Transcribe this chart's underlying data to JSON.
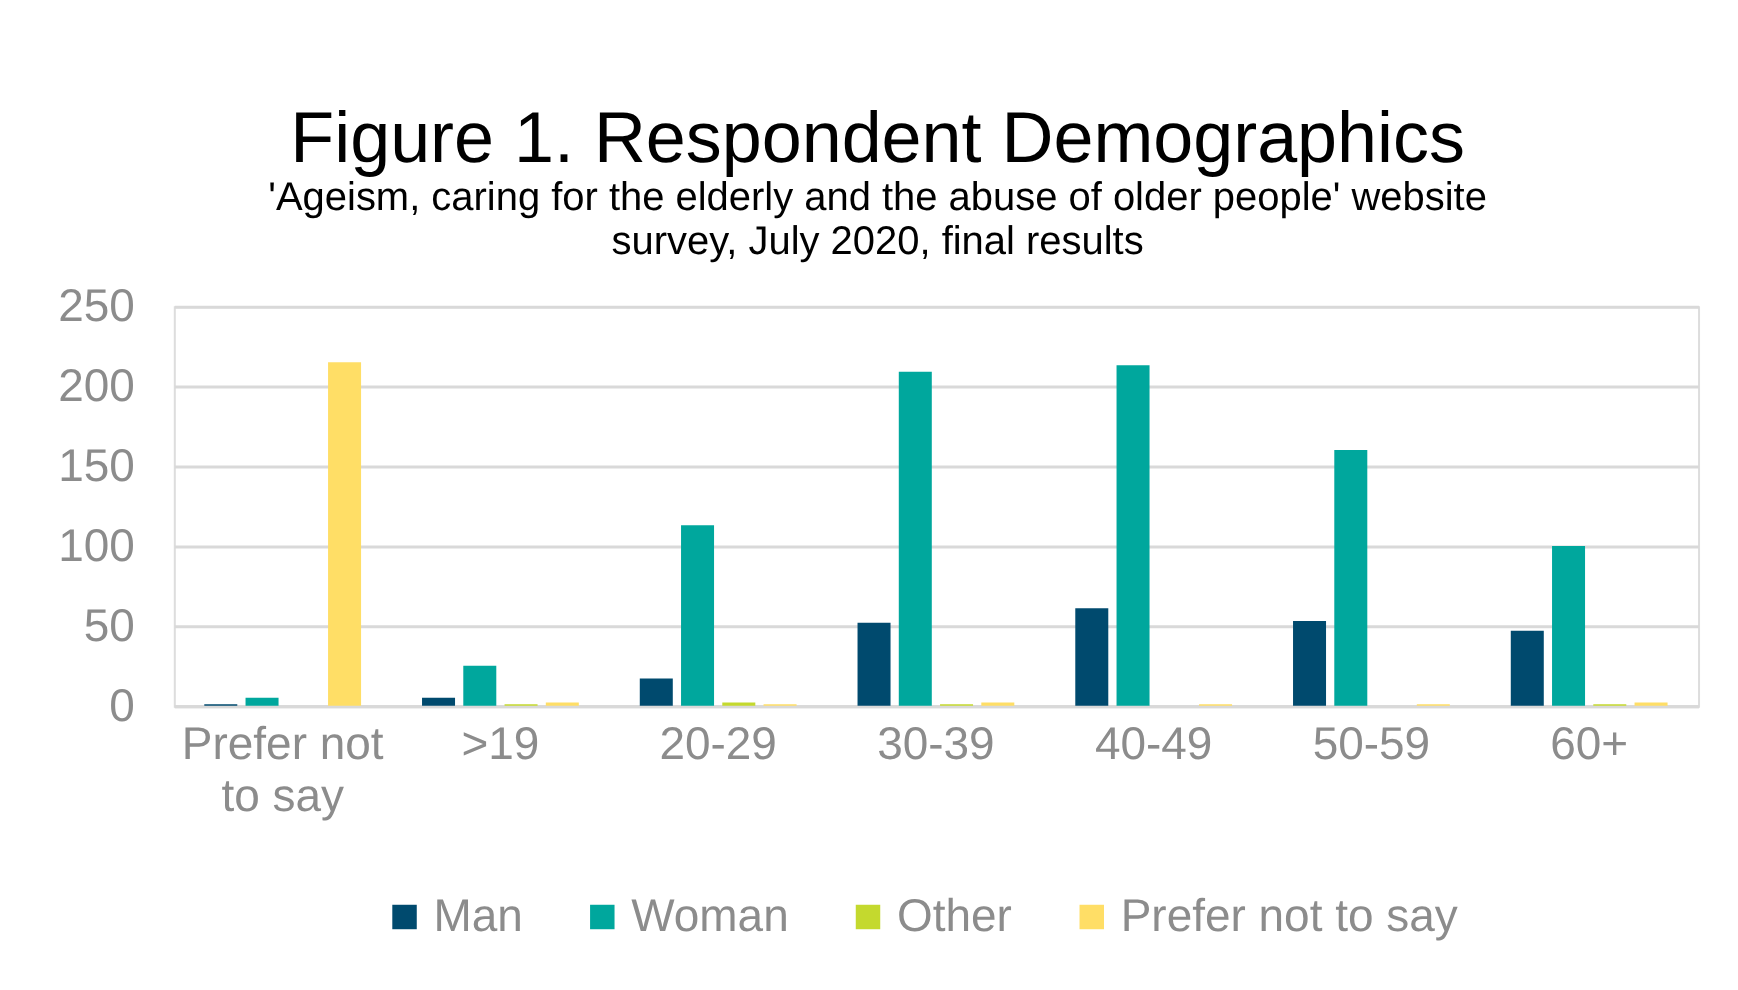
{
  "chart_data": {
    "type": "bar",
    "title": "Figure 1. Respondent Demographics",
    "subtitle": "'Ageism, caring for the elderly and the abuse of older people' website survey, July 2020, final results",
    "categories": [
      "Prefer not to say",
      ">19",
      "20-29",
      "30-39",
      "40-49",
      "50-59",
      "60+"
    ],
    "series": [
      {
        "name": "Man",
        "color": "#004a6e",
        "values": [
          1,
          5,
          17,
          52,
          61,
          53,
          47
        ]
      },
      {
        "name": "Woman",
        "color": "#00a79d",
        "values": [
          5,
          25,
          113,
          209,
          213,
          160,
          100
        ]
      },
      {
        "name": "Other",
        "color": "#c4d92e",
        "values": [
          0,
          1,
          2,
          1,
          0,
          0,
          1
        ]
      },
      {
        "name": "Prefer not to say",
        "color": "#ffde66",
        "values": [
          215,
          2,
          1,
          2,
          1,
          1,
          2
        ]
      }
    ],
    "ylim": [
      0,
      250
    ],
    "yticks": [
      0,
      50,
      100,
      150,
      200,
      250
    ],
    "grid": "y",
    "legend": "bottom"
  }
}
